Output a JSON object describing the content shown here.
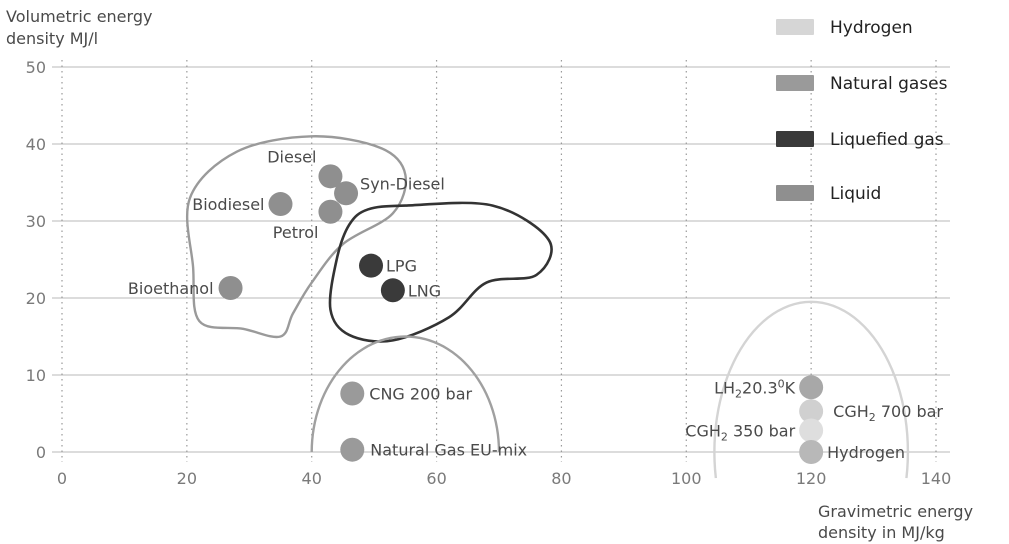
{
  "chart_data": {
    "type": "scatter",
    "title": "",
    "ylabel_lines": [
      "Volumetric energy",
      "density MJ/l"
    ],
    "xlabel_lines": [
      "Gravimetric energy",
      "density in MJ/kg"
    ],
    "xlim": [
      0,
      140
    ],
    "ylim": [
      0,
      50
    ],
    "x_ticks": [
      "0",
      "20",
      "40",
      "60",
      "80",
      "100",
      "120",
      "140"
    ],
    "y_ticks": [
      "0",
      "10",
      "20",
      "30",
      "40",
      "50"
    ],
    "grid": {
      "horizontal": "solid",
      "vertical": "dotted"
    },
    "legend_position": "top-right",
    "legend": [
      {
        "name": "Hydrogen",
        "color": "#d6d6d6"
      },
      {
        "name": "Natural gases",
        "color": "#9a9a9a"
      },
      {
        "name": "Liquefied gas",
        "color": "#3a3a3a"
      },
      {
        "name": "Liquid",
        "color": "#8f8f8f"
      }
    ],
    "series": [
      {
        "name": "Liquid",
        "color": "#8f8f8f",
        "points": [
          {
            "label": "Diesel",
            "x": 43,
            "y": 35.8
          },
          {
            "label": "Syn-Diesel",
            "x": 45.5,
            "y": 33.6
          },
          {
            "label": "Biodiesel",
            "x": 35,
            "y": 32.2
          },
          {
            "label": "Petrol",
            "x": 43,
            "y": 31.2
          },
          {
            "label": "Bioethanol",
            "x": 27,
            "y": 21.3
          }
        ]
      },
      {
        "name": "Liquefied gas",
        "color": "#3a3a3a",
        "points": [
          {
            "label": "LPG",
            "x": 49.5,
            "y": 24.2
          },
          {
            "label": "LNG",
            "x": 53,
            "y": 21
          }
        ]
      },
      {
        "name": "Natural gases",
        "color": "#9a9a9a",
        "points": [
          {
            "label": "CNG 200 bar",
            "x": 46.5,
            "y": 7.6
          },
          {
            "label": "Natural Gas EU-mix",
            "x": 46.5,
            "y": 0.3
          }
        ]
      },
      {
        "name": "Hydrogen",
        "color": "#c4c4c4",
        "points": [
          {
            "label": "LH₂20.3⁰K",
            "x": 120,
            "y": 8.4,
            "color": "#a8a8a8"
          },
          {
            "label": "CGH₂ 700 bar",
            "x": 120,
            "y": 5.3,
            "color": "#d0d0d0"
          },
          {
            "label": "CGH₂ 350 bar",
            "x": 120,
            "y": 2.8,
            "color": "#dedede"
          },
          {
            "label": "Hydrogen",
            "x": 120,
            "y": 0,
            "color": "#b8b8b8"
          }
        ]
      }
    ],
    "groups": [
      {
        "name": "Liquid",
        "color": "#9a9a9a",
        "outline": [
          [
            22,
            17
          ],
          [
            21,
            24
          ],
          [
            20.5,
            33
          ],
          [
            28,
            39
          ],
          [
            40,
            41
          ],
          [
            51,
            39.5
          ],
          [
            55,
            36
          ],
          [
            53,
            31
          ],
          [
            45,
            27
          ],
          [
            40,
            22
          ],
          [
            37,
            18
          ],
          [
            35,
            15
          ],
          [
            29,
            16
          ]
        ]
      },
      {
        "name": "Liquefied gas",
        "color": "#333333",
        "outline": [
          [
            49,
            31.5
          ],
          [
            55,
            32
          ],
          [
            69,
            32
          ],
          [
            78,
            27.5
          ],
          [
            76,
            23
          ],
          [
            68,
            22
          ],
          [
            62,
            17.5
          ],
          [
            53,
            14.5
          ],
          [
            46,
            15.2
          ],
          [
            43,
            18.5
          ],
          [
            44,
            25
          ],
          [
            46,
            29.5
          ]
        ]
      },
      {
        "name": "Natural gases",
        "color": "#a0a0a0",
        "arc": {
          "cx": 55,
          "cy": 0,
          "rx": 15,
          "ry": 15,
          "from": 180,
          "to": 0
        }
      },
      {
        "name": "Hydrogen",
        "color": "#d4d4d4",
        "arc": {
          "cx": 120,
          "cy": 0,
          "rx": 15.5,
          "ry": 19.5,
          "from": 190,
          "to": -10
        }
      }
    ]
  }
}
